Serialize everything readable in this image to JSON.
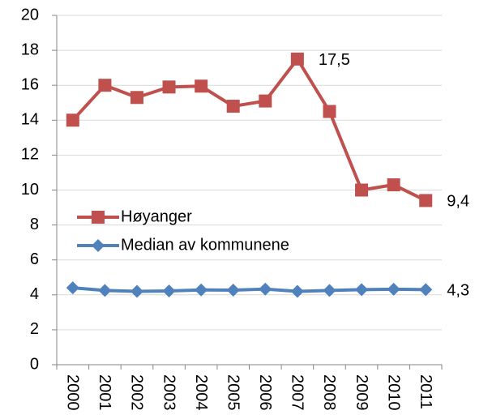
{
  "chart_data": {
    "type": "line",
    "categories": [
      "2000",
      "2001",
      "2002",
      "2003",
      "2004",
      "2005",
      "2006",
      "2007",
      "2008",
      "2009",
      "2010",
      "2011"
    ],
    "series": [
      {
        "name": "Høyanger",
        "color": "#c0504d",
        "marker": "square",
        "values": [
          14.0,
          16.0,
          15.3,
          15.9,
          15.95,
          14.8,
          15.1,
          17.5,
          14.5,
          10.0,
          10.3,
          9.4
        ],
        "value_labels": [
          null,
          null,
          null,
          null,
          null,
          null,
          null,
          "17,5",
          null,
          null,
          null,
          "9,4"
        ]
      },
      {
        "name": "Median av kommunene",
        "color": "#4f81bd",
        "marker": "diamond",
        "values": [
          4.4,
          4.25,
          4.2,
          4.22,
          4.28,
          4.27,
          4.33,
          4.2,
          4.25,
          4.3,
          4.32,
          4.3
        ],
        "value_labels": [
          null,
          null,
          null,
          null,
          null,
          null,
          null,
          null,
          null,
          null,
          null,
          "4,3"
        ]
      }
    ],
    "ylim": [
      0,
      20
    ],
    "yticks": [
      0,
      2,
      4,
      6,
      8,
      10,
      12,
      14,
      16,
      18,
      20
    ],
    "grid": true,
    "legend": "left"
  }
}
